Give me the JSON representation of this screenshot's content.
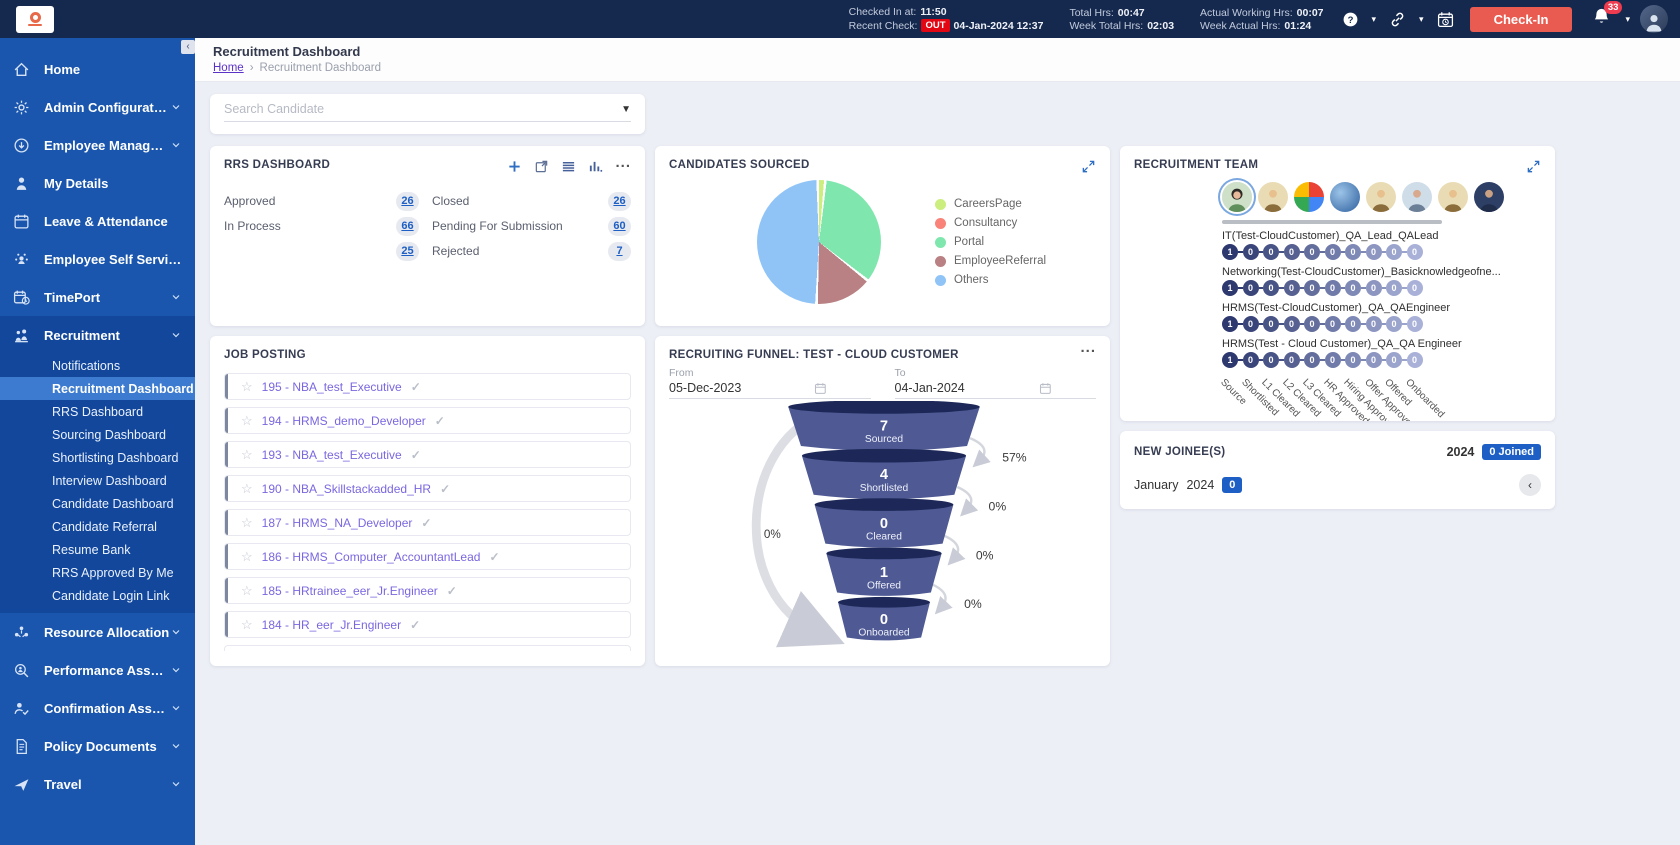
{
  "topbar": {
    "checked_in_label": "Checked In at:",
    "checked_in_value": "11:50",
    "recent_check_label": "Recent Check:",
    "recent_check_badge": "OUT",
    "recent_check_value": "04-Jan-2024 12:37",
    "total_hrs_label": "Total Hrs:",
    "total_hrs_value": "00:47",
    "week_total_label": "Week Total Hrs:",
    "week_total_value": "02:03",
    "actual_working_label": "Actual Working Hrs:",
    "actual_working_value": "00:07",
    "week_actual_label": "Week Actual Hrs:",
    "week_actual_value": "01:24",
    "checkin_button": "Check-In",
    "notification_count": "33"
  },
  "sidebar": {
    "items": [
      {
        "label": "Home",
        "icon": "home-icon",
        "expandable": false
      },
      {
        "label": "Admin Configuration",
        "icon": "gear-icon",
        "expandable": true
      },
      {
        "label": "Employee Management",
        "icon": "employee-icon",
        "expandable": true
      },
      {
        "label": "My Details",
        "icon": "person-icon",
        "expandable": false
      },
      {
        "label": "Leave & Attendance",
        "icon": "calendar-icon",
        "expandable": false
      },
      {
        "label": "Employee Self Service",
        "icon": "self-service-icon",
        "expandable": false
      },
      {
        "label": "TimePort",
        "icon": "timeport-icon",
        "expandable": true
      },
      {
        "label": "Recruitment",
        "icon": "recruitment-icon",
        "expandable": true,
        "expanded": true,
        "children": [
          "Notifications",
          "Recruitment Dashboard",
          "RRS Dashboard",
          "Sourcing Dashboard",
          "Shortlisting Dashboard",
          "Interview Dashboard",
          "Candidate Dashboard",
          "Candidate Referral",
          "Resume Bank",
          "RRS Approved By Me",
          "Candidate Login Link"
        ],
        "active_child": "Recruitment Dashboard"
      },
      {
        "label": "Resource Allocation",
        "icon": "resource-icon",
        "expandable": true
      },
      {
        "label": "Performance Assessment",
        "icon": "performance-icon",
        "expandable": true
      },
      {
        "label": "Confirmation Assessment",
        "icon": "confirmation-icon",
        "expandable": true
      },
      {
        "label": "Policy Documents",
        "icon": "policy-icon",
        "expandable": true
      },
      {
        "label": "Travel",
        "icon": "travel-icon",
        "expandable": true
      }
    ]
  },
  "header": {
    "title": "Recruitment Dashboard",
    "breadcrumb_home": "Home",
    "breadcrumb_separator": "›",
    "breadcrumb_current": "Recruitment Dashboard"
  },
  "search": {
    "placeholder": "Search Candidate"
  },
  "rrs": {
    "title": "RRS DASHBOARD",
    "left": [
      {
        "label": "Approved",
        "value": "26"
      },
      {
        "label": "In Process",
        "value": "66"
      },
      {
        "label": "",
        "value": "25"
      }
    ],
    "right": [
      {
        "label": "Closed",
        "value": "26"
      },
      {
        "label": "Pending For Submission",
        "value": "60"
      },
      {
        "label": "Rejected",
        "value": "7"
      }
    ]
  },
  "candidates_sourced": {
    "title": "CANDIDATES SOURCED"
  },
  "job_posting": {
    "title": "JOB POSTING",
    "items": [
      "195 - NBA_test_Executive",
      "194 - HRMS_demo_Developer",
      "193 - NBA_test_Executive",
      "190 - NBA_Skillstackadded_HR",
      "187 - HRMS_NA_Developer",
      "186 - HRMS_Computer_AccountantLead",
      "185 - HRtrainee_eer_Jr.Engineer",
      "184 - HR_eer_Jr.Engineer"
    ]
  },
  "funnel": {
    "title": "RECRUITING FUNNEL: TEST - CLOUD CUSTOMER",
    "from_label": "From",
    "from_value": "05-Dec-2023",
    "to_label": "To",
    "to_value": "04-Jan-2024",
    "stages": [
      {
        "value": "7",
        "label": "Sourced"
      },
      {
        "value": "4",
        "label": "Shortlisted"
      },
      {
        "value": "0",
        "label": "Cleared"
      },
      {
        "value": "1",
        "label": "Offered"
      },
      {
        "value": "0",
        "label": "Onboarded"
      }
    ],
    "right_percents": [
      "57%",
      "0%",
      "0%",
      "0%"
    ],
    "left_percent": "0%"
  },
  "team": {
    "title": "RECRUITMENT TEAM",
    "avatars": [
      {
        "kind": "woman",
        "selected": true
      },
      {
        "kind": "man"
      },
      {
        "kind": "pinwheel"
      },
      {
        "kind": "globe"
      },
      {
        "kind": "man"
      },
      {
        "kind": "man-photo"
      },
      {
        "kind": "man"
      },
      {
        "kind": "man-dark"
      }
    ],
    "rows": [
      {
        "label": "IT(Test-CloudCustomer)_QA_Lead_QALead",
        "values": [
          1,
          0,
          0,
          0,
          0,
          0,
          0,
          0,
          0,
          0
        ]
      },
      {
        "label": "Networking(Test-CloudCustomer)_Basicknowledgeofne...",
        "values": [
          1,
          0,
          0,
          0,
          0,
          0,
          0,
          0,
          0,
          0
        ]
      },
      {
        "label": "HRMS(Test-CloudCustomer)_QA_QAEngineer",
        "values": [
          1,
          0,
          0,
          0,
          0,
          0,
          0,
          0,
          0,
          0
        ]
      },
      {
        "label": "HRMS(Test - Cloud Customer)_QA_QA Engineer",
        "values": [
          1,
          0,
          0,
          0,
          0,
          0,
          0,
          0,
          0,
          0
        ]
      }
    ],
    "columns": [
      "Source",
      "Shortlisted",
      "L1 Cleared",
      "L2 Cleared",
      "L3 Cleared",
      "HR Approved",
      "Hiring Approved",
      "Offer Approved",
      "Offered",
      "Onboarded"
    ]
  },
  "new_joinees": {
    "title": "NEW JOINEE(S)",
    "year": "2024",
    "joined_badge": "0 Joined",
    "month": "January",
    "month_year": "2024",
    "month_count": "0"
  },
  "colors": {
    "topbar_navy": "#15294e",
    "sidebar_blue": "#1a56ad",
    "accent_blue": "#1d5fc4",
    "checkin_red": "#e95a50",
    "funnel_body": "#4f5a94",
    "funnel_top": "#1d2858",
    "team_circle_dark": "#2c386e",
    "team_circle_light": "#a9b1d8"
  },
  "chart_data": [
    {
      "type": "pie",
      "title": "CANDIDATES SOURCED",
      "labels": [
        "CareersPage",
        "Consultancy",
        "Portal",
        "EmployeeReferral",
        "Others"
      ],
      "values_pct": [
        2,
        0,
        34,
        15,
        49
      ],
      "colors": [
        "#cbee7e",
        "#f98379",
        "#7fe7ae",
        "#b98183",
        "#90c4f7"
      ],
      "legend_position": "right"
    },
    {
      "type": "funnel",
      "title": "RECRUITING FUNNEL: TEST - CLOUD CUSTOMER",
      "stages": [
        "Sourced",
        "Shortlisted",
        "Cleared",
        "Offered",
        "Onboarded"
      ],
      "values": [
        7,
        4,
        0,
        1,
        0
      ],
      "stage_conversion_pct": [
        57,
        0,
        0,
        0
      ],
      "overall_conversion_pct": 0,
      "date_from": "05-Dec-2023",
      "date_to": "04-Jan-2024"
    },
    {
      "type": "table",
      "title": "RECRUITMENT TEAM",
      "columns": [
        "Source",
        "Shortlisted",
        "L1 Cleared",
        "L2 Cleared",
        "L3 Cleared",
        "HR Approved",
        "Hiring Approved",
        "Offer Approved",
        "Offered",
        "Onboarded"
      ],
      "rows": [
        {
          "label": "IT(Test-CloudCustomer)_QA_Lead_QALead",
          "values": [
            1,
            0,
            0,
            0,
            0,
            0,
            0,
            0,
            0,
            0
          ]
        },
        {
          "label": "Networking(Test-CloudCustomer)_Basicknowledgeofne...",
          "values": [
            1,
            0,
            0,
            0,
            0,
            0,
            0,
            0,
            0,
            0
          ]
        },
        {
          "label": "HRMS(Test-CloudCustomer)_QA_QAEngineer",
          "values": [
            1,
            0,
            0,
            0,
            0,
            0,
            0,
            0,
            0,
            0
          ]
        },
        {
          "label": "HRMS(Test - Cloud Customer)_QA_QA Engineer",
          "values": [
            1,
            0,
            0,
            0,
            0,
            0,
            0,
            0,
            0,
            0
          ]
        }
      ]
    }
  ]
}
